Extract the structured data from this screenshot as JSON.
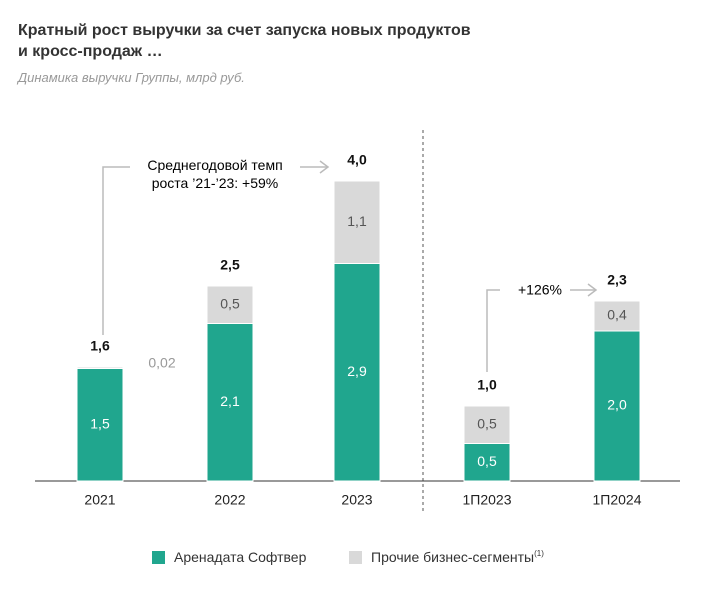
{
  "chart_data": {
    "type": "stacked_bar",
    "title": "Кратный рост выручки за счет запуска новых продуктов\nи кросс-продаж …",
    "subtitle": "Динамика выручки Группы, млрд руб.",
    "categories": [
      "2021",
      "2022",
      "2023",
      "1П2023",
      "1П2024"
    ],
    "series": [
      {
        "name": "Аренадата Софтвер",
        "color": "#20a68e",
        "values": [
          1.5,
          2.1,
          2.9,
          0.5,
          2.0
        ],
        "value_labels": [
          "1,5",
          "2,1",
          "2,9",
          "0,5",
          "2,0"
        ]
      },
      {
        "name": "Прочие бизнес-сегменты",
        "footnote_mark": "(1)",
        "color": "#d9d9d9",
        "values": [
          0.02,
          0.5,
          1.1,
          0.5,
          0.4
        ],
        "value_labels": [
          "0,02",
          "0,5",
          "1,1",
          "0,5",
          "0,4"
        ]
      }
    ],
    "totals": {
      "values": [
        1.6,
        2.5,
        4.0,
        1.0,
        2.3
      ],
      "value_labels": [
        "1,6",
        "2,5",
        "4,0",
        "1,0",
        "2,3"
      ]
    },
    "annotations": [
      "Среднегодовой темп\nроста ’21-’23: +59%",
      "+126%"
    ]
  }
}
